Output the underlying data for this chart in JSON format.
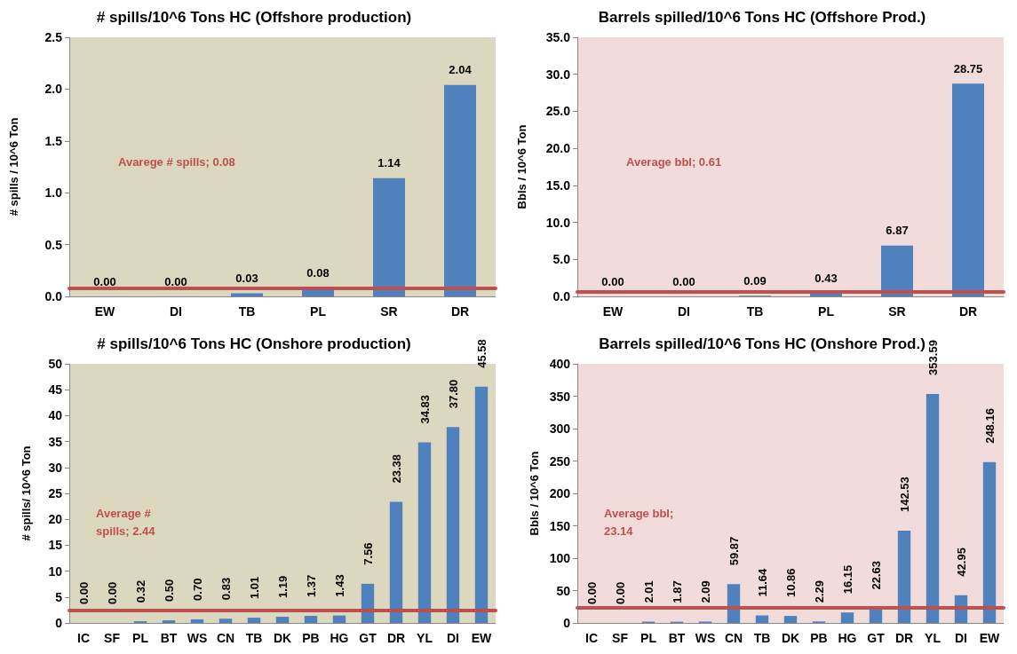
{
  "chart_data": [
    {
      "type": "bar",
      "title": "# spills/10^6 Tons HC (Offshore production)",
      "ylabel": "# spills / 10^6 Ton",
      "categories": [
        "EW",
        "DI",
        "TB",
        "PL",
        "SR",
        "DR"
      ],
      "series": [
        {
          "color": "#4f81bd",
          "values": [
            0.0,
            0.0,
            0.03,
            0.08,
            1.14,
            2.04
          ],
          "value_labels": [
            "0.00",
            "0.00",
            "0.03",
            "0.08",
            "1.14",
            "2.04"
          ]
        }
      ],
      "ylim": [
        0,
        2.5
      ],
      "yticks": [
        {
          "value": 0,
          "label": "0.0"
        },
        {
          "value": 0.5,
          "label": "0.5"
        },
        {
          "value": 1,
          "label": "1.0"
        },
        {
          "value": 1.5,
          "label": "1.5"
        },
        {
          "value": 2,
          "label": "2.0"
        },
        {
          "value": 2.5,
          "label": "2.5"
        }
      ],
      "ref_lines": [
        {
          "axis": "y",
          "value": 0.08,
          "label": "Avarege # spills; 0.08",
          "color": "#c0504d"
        }
      ],
      "grid": false
    },
    {
      "type": "bar",
      "title": "Barrels spilled/10^6 Tons HC (Offshore Prod.)",
      "ylabel": "Bbls / 10^6 Ton",
      "categories": [
        "EW",
        "DI",
        "TB",
        "PL",
        "SR",
        "DR"
      ],
      "series": [
        {
          "color": "#4f81bd",
          "values": [
            0.0,
            0.0,
            0.09,
            0.43,
            6.87,
            28.75
          ],
          "value_labels": [
            "0.00",
            "0.00",
            "0.09",
            "0.43",
            "6.87",
            "28.75"
          ]
        }
      ],
      "ylim": [
        0,
        35
      ],
      "yticks": [
        {
          "value": 0,
          "label": "0.0"
        },
        {
          "value": 5,
          "label": "5.0"
        },
        {
          "value": 10,
          "label": "10.0"
        },
        {
          "value": 15,
          "label": "15.0"
        },
        {
          "value": 20,
          "label": "20.0"
        },
        {
          "value": 25,
          "label": "25.0"
        },
        {
          "value": 30,
          "label": "30.0"
        },
        {
          "value": 35,
          "label": "35.0"
        }
      ],
      "ref_lines": [
        {
          "axis": "y",
          "value": 0.61,
          "label": "Average bbl; 0.61",
          "color": "#c0504d"
        }
      ],
      "grid": false
    },
    {
      "type": "bar",
      "title": "# spills/10^6 Tons HC (Onshore production)",
      "ylabel": "# spills/ 10^6 Ton",
      "categories": [
        "IC",
        "SF",
        "PL",
        "BT",
        "WS",
        "CN",
        "TB",
        "DK",
        "PB",
        "HG",
        "GT",
        "DR",
        "YL",
        "DI",
        "EW"
      ],
      "series": [
        {
          "color": "#4f81bd",
          "values": [
            0.0,
            0.0,
            0.32,
            0.5,
            0.7,
            0.83,
            1.01,
            1.19,
            1.37,
            1.43,
            7.56,
            23.38,
            34.83,
            37.8,
            45.58
          ],
          "value_labels": [
            "0.00",
            "0.00",
            "0.32",
            "0.50",
            "0.70",
            "0.83",
            "1.01",
            "1.19",
            "1.37",
            "1.43",
            "7.56",
            "23.38",
            "34.83",
            "37.80",
            "45.58"
          ]
        }
      ],
      "ylim": [
        0,
        50
      ],
      "yticks": [
        0,
        5,
        10,
        15,
        20,
        25,
        30,
        35,
        40,
        45,
        50
      ],
      "ref_lines": [
        {
          "axis": "y",
          "value": 2.44,
          "label": "Average # spills; 2.44",
          "color": "#c0504d"
        }
      ],
      "grid": false
    },
    {
      "type": "bar",
      "title": "Barrels spilled/10^6 Tons HC (Onshore Prod.)",
      "ylabel": "Bbls / 10^6 Ton",
      "categories": [
        "IC",
        "SF",
        "PL",
        "BT",
        "WS",
        "CN",
        "TB",
        "DK",
        "PB",
        "HG",
        "GT",
        "DR",
        "YL",
        "DI",
        "EW"
      ],
      "series": [
        {
          "color": "#4f81bd",
          "values": [
            0.0,
            0.0,
            2.01,
            1.87,
            2.09,
            59.87,
            11.64,
            10.86,
            2.29,
            16.15,
            22.63,
            142.53,
            353.59,
            42.95,
            248.16
          ],
          "value_labels": [
            "0.00",
            "0.00",
            "2.01",
            "1.87",
            "2.09",
            "59.87",
            "11.64",
            "10.86",
            "2.29",
            "16.15",
            "22.63",
            "142.53",
            "353.59",
            "42.95",
            "248.16"
          ]
        }
      ],
      "ylim": [
        0,
        400
      ],
      "yticks": [
        0,
        50,
        100,
        150,
        200,
        250,
        300,
        350,
        400
      ],
      "ref_lines": [
        {
          "axis": "y",
          "value": 23.14,
          "label": "Average bbl; 23.14",
          "color": "#c0504d"
        }
      ],
      "grid": false
    }
  ]
}
